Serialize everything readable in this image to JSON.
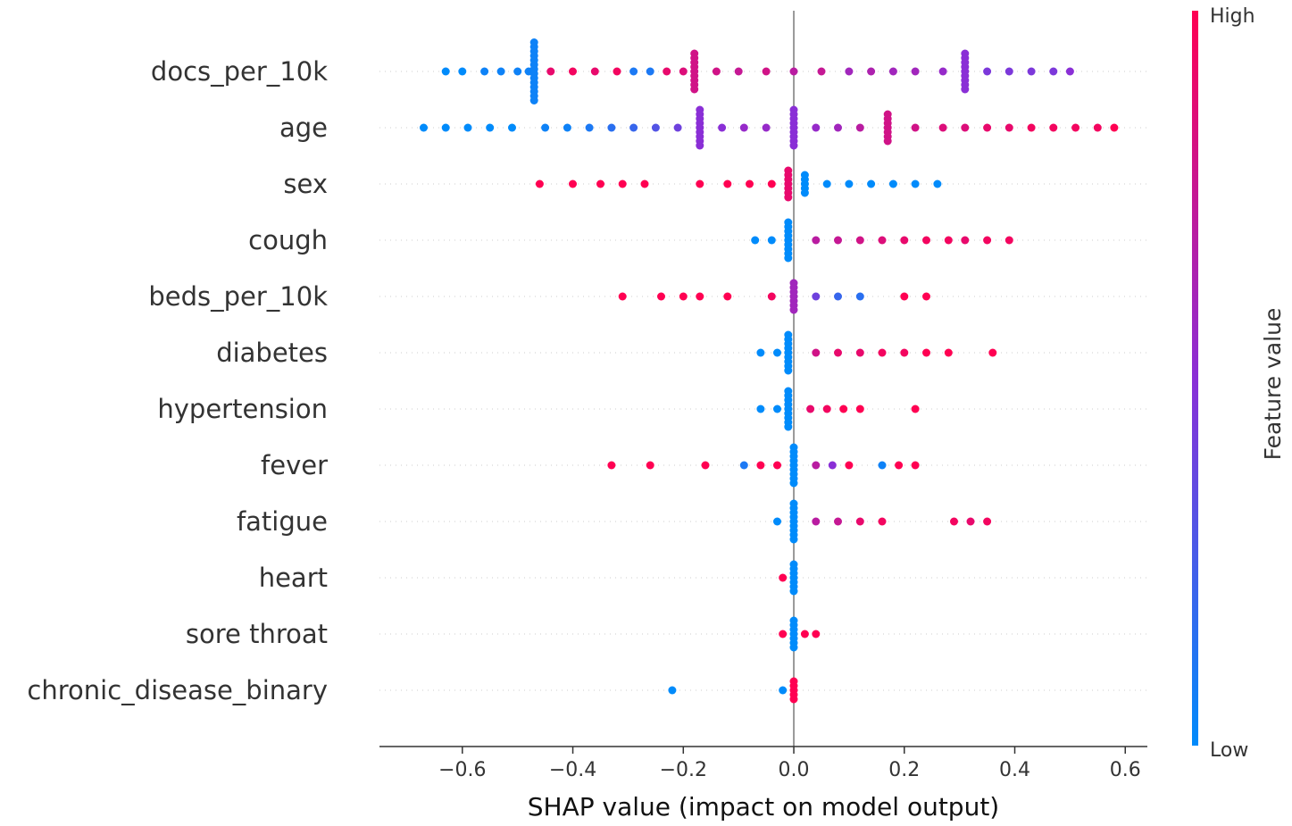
{
  "chart_data": {
    "type": "scatter",
    "subtype": "shap-beeswarm",
    "title": "",
    "xlabel": "SHAP value (impact on model output)",
    "xlim": [
      -0.75,
      0.64
    ],
    "xticks": [
      -0.6,
      -0.4,
      -0.2,
      0.0,
      0.2,
      0.4,
      0.6
    ],
    "xtick_labels": [
      "−0.6",
      "−0.4",
      "−0.2",
      "0.0",
      "0.2",
      "0.4",
      "0.6"
    ],
    "grid": "horizontal dotted per feature",
    "colorbar": {
      "title": "Feature value",
      "high_label": "High",
      "low_label": "Low",
      "high_color": "#ff0052",
      "low_color": "#008bfb"
    },
    "features": [
      {
        "name": "docs_per_10k",
        "points": [
          {
            "x": -0.63,
            "v": 0.0
          },
          {
            "x": -0.6,
            "v": 0.0
          },
          {
            "x": -0.56,
            "v": 0.05
          },
          {
            "x": -0.53,
            "v": 0.05
          },
          {
            "x": -0.5,
            "v": 0.05
          },
          {
            "x": -0.48,
            "v": 0.05
          },
          {
            "x": -0.47,
            "v": 0.05,
            "n": 14
          },
          {
            "x": -0.44,
            "v": 0.9
          },
          {
            "x": -0.4,
            "v": 0.95
          },
          {
            "x": -0.36,
            "v": 0.9
          },
          {
            "x": -0.32,
            "v": 0.95
          },
          {
            "x": -0.29,
            "v": 0.1
          },
          {
            "x": -0.26,
            "v": 0.1
          },
          {
            "x": -0.23,
            "v": 0.9
          },
          {
            "x": -0.2,
            "v": 0.85
          },
          {
            "x": -0.18,
            "v": 0.8,
            "n": 9
          },
          {
            "x": -0.14,
            "v": 0.8
          },
          {
            "x": -0.1,
            "v": 0.75
          },
          {
            "x": -0.05,
            "v": 0.8
          },
          {
            "x": 0.0,
            "v": 0.7
          },
          {
            "x": 0.05,
            "v": 0.75
          },
          {
            "x": 0.1,
            "v": 0.6
          },
          {
            "x": 0.14,
            "v": 0.65
          },
          {
            "x": 0.18,
            "v": 0.6
          },
          {
            "x": 0.22,
            "v": 0.6
          },
          {
            "x": 0.27,
            "v": 0.55
          },
          {
            "x": 0.31,
            "v": 0.5,
            "n": 9
          },
          {
            "x": 0.35,
            "v": 0.45
          },
          {
            "x": 0.39,
            "v": 0.45
          },
          {
            "x": 0.43,
            "v": 0.45
          },
          {
            "x": 0.47,
            "v": 0.45
          },
          {
            "x": 0.5,
            "v": 0.5
          }
        ]
      },
      {
        "name": "age",
        "points": [
          {
            "x": -0.67,
            "v": 0.0
          },
          {
            "x": -0.63,
            "v": 0.0
          },
          {
            "x": -0.59,
            "v": 0.0
          },
          {
            "x": -0.55,
            "v": 0.0
          },
          {
            "x": -0.51,
            "v": 0.0
          },
          {
            "x": -0.45,
            "v": 0.05
          },
          {
            "x": -0.41,
            "v": 0.05
          },
          {
            "x": -0.37,
            "v": 0.1
          },
          {
            "x": -0.33,
            "v": 0.15
          },
          {
            "x": -0.29,
            "v": 0.2
          },
          {
            "x": -0.25,
            "v": 0.3
          },
          {
            "x": -0.21,
            "v": 0.4
          },
          {
            "x": -0.17,
            "v": 0.5,
            "n": 9
          },
          {
            "x": -0.13,
            "v": 0.5
          },
          {
            "x": -0.09,
            "v": 0.55
          },
          {
            "x": -0.05,
            "v": 0.55
          },
          {
            "x": 0.0,
            "v": 0.5,
            "n": 9
          },
          {
            "x": 0.04,
            "v": 0.55
          },
          {
            "x": 0.08,
            "v": 0.6
          },
          {
            "x": 0.12,
            "v": 0.7
          },
          {
            "x": 0.17,
            "v": 0.8,
            "n": 7
          },
          {
            "x": 0.22,
            "v": 0.8
          },
          {
            "x": 0.27,
            "v": 0.85
          },
          {
            "x": 0.31,
            "v": 0.85
          },
          {
            "x": 0.35,
            "v": 0.9
          },
          {
            "x": 0.39,
            "v": 0.9
          },
          {
            "x": 0.43,
            "v": 0.95
          },
          {
            "x": 0.47,
            "v": 0.95
          },
          {
            "x": 0.51,
            "v": 0.95
          },
          {
            "x": 0.55,
            "v": 0.95
          },
          {
            "x": 0.58,
            "v": 1.0
          }
        ]
      },
      {
        "name": "sex",
        "points": [
          {
            "x": -0.46,
            "v": 1.0
          },
          {
            "x": -0.4,
            "v": 1.0
          },
          {
            "x": -0.35,
            "v": 1.0
          },
          {
            "x": -0.31,
            "v": 1.0
          },
          {
            "x": -0.27,
            "v": 1.0
          },
          {
            "x": -0.17,
            "v": 1.0
          },
          {
            "x": -0.12,
            "v": 1.0
          },
          {
            "x": -0.08,
            "v": 1.0
          },
          {
            "x": -0.04,
            "v": 1.0
          },
          {
            "x": -0.01,
            "v": 0.9,
            "n": 7
          },
          {
            "x": 0.02,
            "v": 0.0,
            "n": 5
          },
          {
            "x": 0.06,
            "v": 0.0
          },
          {
            "x": 0.1,
            "v": 0.0
          },
          {
            "x": 0.14,
            "v": 0.0
          },
          {
            "x": 0.18,
            "v": 0.0
          },
          {
            "x": 0.22,
            "v": 0.0
          },
          {
            "x": 0.26,
            "v": 0.0
          }
        ]
      },
      {
        "name": "cough",
        "points": [
          {
            "x": -0.07,
            "v": 0.0
          },
          {
            "x": -0.04,
            "v": 0.0
          },
          {
            "x": -0.01,
            "v": 0.0,
            "n": 9
          },
          {
            "x": 0.04,
            "v": 0.7
          },
          {
            "x": 0.08,
            "v": 0.75
          },
          {
            "x": 0.12,
            "v": 0.8
          },
          {
            "x": 0.16,
            "v": 0.85
          },
          {
            "x": 0.2,
            "v": 0.9
          },
          {
            "x": 0.24,
            "v": 0.95
          },
          {
            "x": 0.28,
            "v": 0.95
          },
          {
            "x": 0.31,
            "v": 0.9
          },
          {
            "x": 0.35,
            "v": 0.95
          },
          {
            "x": 0.39,
            "v": 0.95
          }
        ]
      },
      {
        "name": "beds_per_10k",
        "points": [
          {
            "x": -0.31,
            "v": 1.0
          },
          {
            "x": -0.24,
            "v": 1.0
          },
          {
            "x": -0.2,
            "v": 1.0
          },
          {
            "x": -0.17,
            "v": 1.0
          },
          {
            "x": -0.12,
            "v": 1.0
          },
          {
            "x": -0.04,
            "v": 0.95
          },
          {
            "x": 0.0,
            "v": 0.6,
            "n": 7
          },
          {
            "x": 0.04,
            "v": 0.4
          },
          {
            "x": 0.08,
            "v": 0.2
          },
          {
            "x": 0.12,
            "v": 0.15
          },
          {
            "x": 0.2,
            "v": 1.0
          },
          {
            "x": 0.24,
            "v": 1.0
          }
        ]
      },
      {
        "name": "diabetes",
        "points": [
          {
            "x": -0.06,
            "v": 0.0
          },
          {
            "x": -0.03,
            "v": 0.0
          },
          {
            "x": -0.01,
            "v": 0.0,
            "n": 9
          },
          {
            "x": 0.04,
            "v": 0.8
          },
          {
            "x": 0.08,
            "v": 0.9
          },
          {
            "x": 0.12,
            "v": 0.9
          },
          {
            "x": 0.16,
            "v": 0.95
          },
          {
            "x": 0.2,
            "v": 0.95
          },
          {
            "x": 0.24,
            "v": 1.0
          },
          {
            "x": 0.28,
            "v": 1.0
          },
          {
            "x": 0.36,
            "v": 1.0
          }
        ]
      },
      {
        "name": "hypertension",
        "points": [
          {
            "x": -0.06,
            "v": 0.0
          },
          {
            "x": -0.03,
            "v": 0.0
          },
          {
            "x": -0.01,
            "v": 0.0,
            "n": 9
          },
          {
            "x": 0.03,
            "v": 0.9
          },
          {
            "x": 0.06,
            "v": 0.95
          },
          {
            "x": 0.09,
            "v": 1.0
          },
          {
            "x": 0.12,
            "v": 1.0
          },
          {
            "x": 0.22,
            "v": 1.0
          }
        ]
      },
      {
        "name": "fever",
        "points": [
          {
            "x": -0.33,
            "v": 1.0
          },
          {
            "x": -0.26,
            "v": 1.0
          },
          {
            "x": -0.16,
            "v": 1.0
          },
          {
            "x": -0.09,
            "v": 0.1
          },
          {
            "x": -0.06,
            "v": 1.0
          },
          {
            "x": -0.03,
            "v": 1.0
          },
          {
            "x": 0.0,
            "v": 0.0,
            "n": 9
          },
          {
            "x": 0.04,
            "v": 0.7
          },
          {
            "x": 0.07,
            "v": 0.5
          },
          {
            "x": 0.1,
            "v": 1.0
          },
          {
            "x": 0.16,
            "v": 0.05
          },
          {
            "x": 0.19,
            "v": 1.0
          },
          {
            "x": 0.22,
            "v": 1.0
          }
        ]
      },
      {
        "name": "fatigue",
        "points": [
          {
            "x": -0.03,
            "v": 0.0
          },
          {
            "x": 0.0,
            "v": 0.0,
            "n": 9
          },
          {
            "x": 0.04,
            "v": 0.7
          },
          {
            "x": 0.08,
            "v": 0.75
          },
          {
            "x": 0.12,
            "v": 0.9
          },
          {
            "x": 0.16,
            "v": 0.95
          },
          {
            "x": 0.29,
            "v": 0.95
          },
          {
            "x": 0.32,
            "v": 0.9
          },
          {
            "x": 0.35,
            "v": 0.95
          }
        ]
      },
      {
        "name": "heart",
        "points": [
          {
            "x": -0.02,
            "v": 1.0
          },
          {
            "x": 0.0,
            "v": 0.0,
            "n": 7
          }
        ]
      },
      {
        "name": "sore throat",
        "points": [
          {
            "x": -0.02,
            "v": 1.0
          },
          {
            "x": 0.0,
            "v": 0.0,
            "n": 7
          },
          {
            "x": 0.02,
            "v": 1.0
          },
          {
            "x": 0.04,
            "v": 1.0
          }
        ]
      },
      {
        "name": "chronic_disease_binary",
        "points": [
          {
            "x": -0.22,
            "v": 0.0
          },
          {
            "x": -0.02,
            "v": 0.0
          },
          {
            "x": 0.0,
            "v": 1.0,
            "n": 5
          }
        ]
      }
    ]
  }
}
